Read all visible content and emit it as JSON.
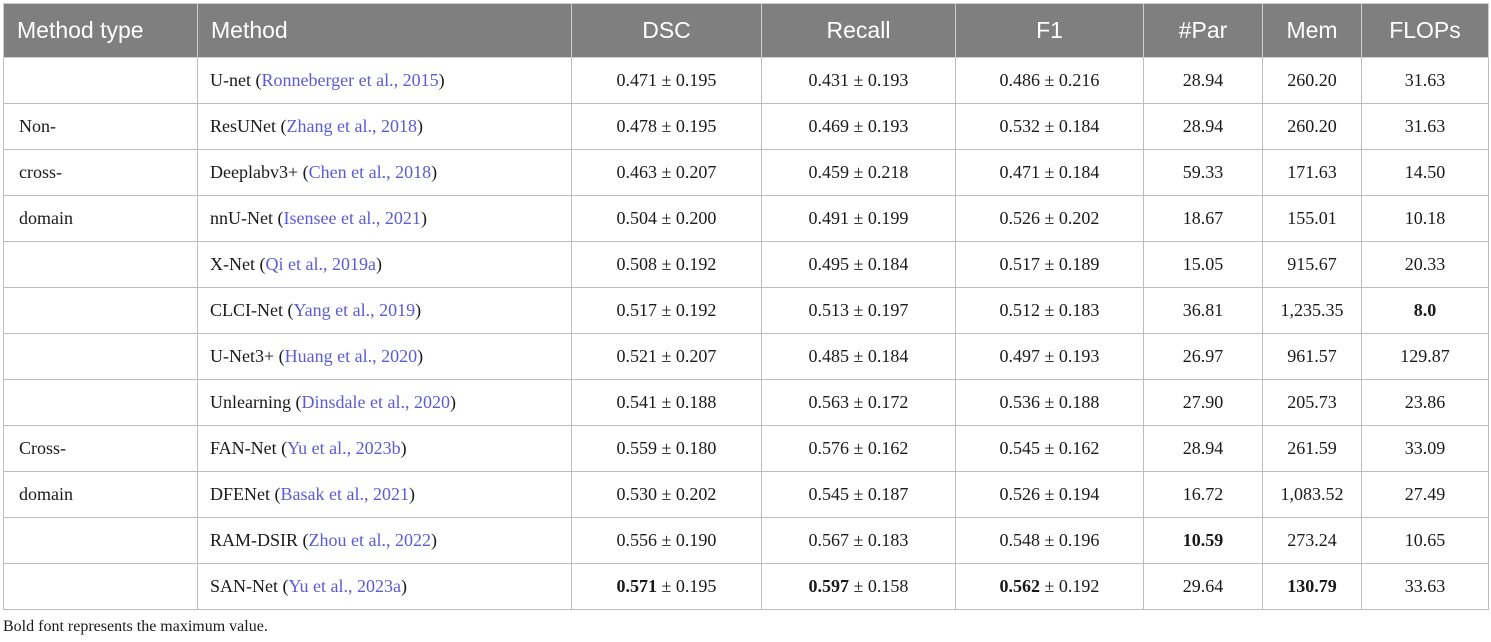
{
  "table": {
    "headers": [
      "Method type",
      "Method",
      "DSC",
      "Recall",
      "F1",
      "#Par",
      "Mem",
      "FLOPs"
    ],
    "rows": [
      {
        "type": "",
        "method": "U-net",
        "cite": "Ronneberger et al., 2015",
        "dsc_mean": "0.471",
        "dsc_std": "± 0.195",
        "recall_mean": "0.431",
        "recall_std": "± 0.193",
        "f1_mean": "0.486",
        "f1_std": "± 0.216",
        "par": "28.94",
        "mem": "260.20",
        "flops": "31.63"
      },
      {
        "type": "Non-",
        "method": "ResUNet",
        "cite": "Zhang et al., 2018",
        "dsc_mean": "0.478",
        "dsc_std": "± 0.195",
        "recall_mean": "0.469",
        "recall_std": "± 0.193",
        "f1_mean": "0.532",
        "f1_std": "± 0.184",
        "par": "28.94",
        "mem": "260.20",
        "flops": "31.63"
      },
      {
        "type": "cross-",
        "method": "Deeplabv3+",
        "cite": "Chen et al., 2018",
        "dsc_mean": "0.463",
        "dsc_std": "± 0.207",
        "recall_mean": "0.459",
        "recall_std": "± 0.218",
        "f1_mean": "0.471",
        "f1_std": "± 0.184",
        "par": "59.33",
        "mem": "171.63",
        "flops": "14.50"
      },
      {
        "type": "domain",
        "method": "nnU-Net",
        "cite": "Isensee et al., 2021",
        "dsc_mean": "0.504",
        "dsc_std": "± 0.200",
        "recall_mean": "0.491",
        "recall_std": "± 0.199",
        "f1_mean": "0.526",
        "f1_std": "± 0.202",
        "par": "18.67",
        "mem": "155.01",
        "flops": "10.18"
      },
      {
        "type": "",
        "method": "X-Net",
        "cite": "Qi et al., 2019a",
        "dsc_mean": "0.508",
        "dsc_std": "± 0.192",
        "recall_mean": "0.495",
        "recall_std": "± 0.184",
        "f1_mean": "0.517",
        "f1_std": "± 0.189",
        "par": "15.05",
        "mem": "915.67",
        "flops": "20.33"
      },
      {
        "type": "",
        "method": "CLCI-Net",
        "cite": "Yang et al., 2019",
        "dsc_mean": "0.517",
        "dsc_std": "± 0.192",
        "recall_mean": "0.513",
        "recall_std": "± 0.197",
        "f1_mean": "0.512",
        "f1_std": "± 0.183",
        "par": "36.81",
        "mem": "1,235.35",
        "flops": "8.0"
      },
      {
        "type": "",
        "method": "U-Net3+",
        "cite": "Huang et al., 2020",
        "dsc_mean": "0.521",
        "dsc_std": "± 0.207",
        "recall_mean": "0.485",
        "recall_std": "± 0.184",
        "f1_mean": "0.497",
        "f1_std": "± 0.193",
        "par": "26.97",
        "mem": "961.57",
        "flops": "129.87"
      },
      {
        "type": "",
        "method": "Unlearning",
        "cite": "Dinsdale et al., 2020",
        "dsc_mean": "0.541",
        "dsc_std": "± 0.188",
        "recall_mean": "0.563",
        "recall_std": "± 0.172",
        "f1_mean": "0.536",
        "f1_std": "± 0.188",
        "par": "27.90",
        "mem": "205.73",
        "flops": "23.86"
      },
      {
        "type": "Cross-",
        "method": "FAN-Net",
        "cite": "Yu et al., 2023b",
        "dsc_mean": "0.559",
        "dsc_std": "± 0.180",
        "recall_mean": "0.576",
        "recall_std": "± 0.162",
        "f1_mean": "0.545",
        "f1_std": "± 0.162",
        "par": "28.94",
        "mem": "261.59",
        "flops": "33.09"
      },
      {
        "type": "domain",
        "method": "DFENet",
        "cite": "Basak et al., 2021",
        "dsc_mean": "0.530",
        "dsc_std": "± 0.202",
        "recall_mean": "0.545",
        "recall_std": "± 0.187",
        "f1_mean": "0.526",
        "f1_std": "± 0.194",
        "par": "16.72",
        "mem": "1,083.52",
        "flops": "27.49"
      },
      {
        "type": "",
        "method": "RAM-DSIR",
        "cite": "Zhou et al., 2022",
        "dsc_mean": "0.556",
        "dsc_std": "± 0.190",
        "recall_mean": "0.567",
        "recall_std": "± 0.183",
        "f1_mean": "0.548",
        "f1_std": "± 0.196",
        "par": "10.59",
        "mem": "273.24",
        "flops": "10.65"
      },
      {
        "type": "",
        "method": "SAN-Net",
        "cite": "Yu et al., 2023a",
        "dsc_mean": "0.571",
        "dsc_std": "± 0.195",
        "recall_mean": "0.597",
        "recall_std": "± 0.158",
        "f1_mean": "0.562",
        "f1_std": "± 0.192",
        "par": "29.64",
        "mem": "130.79",
        "flops": "33.63"
      }
    ]
  },
  "footnote": "Bold font represents the maximum value."
}
